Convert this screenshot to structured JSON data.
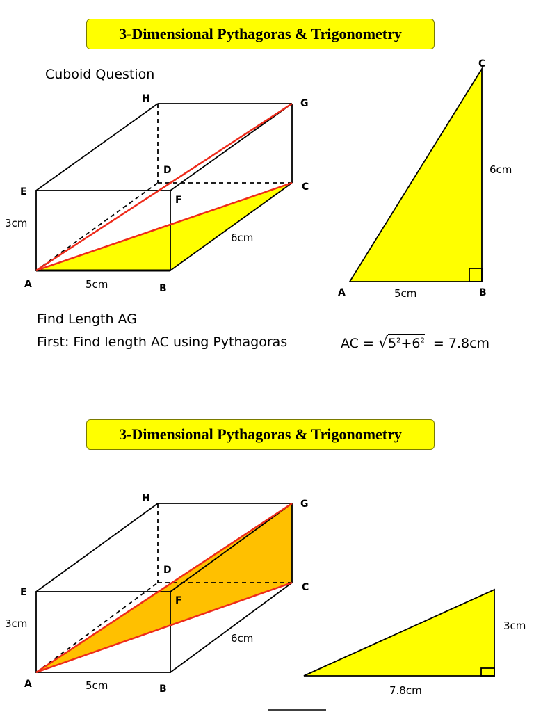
{
  "title_top": "3-Dimensional Pythagoras & Trigonometry",
  "title_bottom": "3-Dimensional Pythagoras & Trigonometry",
  "subtitle": "Cuboid Question",
  "find_text": "Find Length AG",
  "first_text": "First: Find length AC using Pythagoras",
  "formula": {
    "prefix": "AC = ",
    "root": "√",
    "base1": "5",
    "plus": "+6",
    "sup": "2",
    "suffix": "=  7.8cm"
  },
  "cuboid_top": {
    "vertices": {
      "H": "H",
      "G": "G",
      "D": "D",
      "C": "C",
      "E": "E",
      "F": "F",
      "A": "A",
      "B": "B"
    },
    "dims": {
      "height": "3cm",
      "width": "5cm",
      "depth": "6cm"
    }
  },
  "triangle_top": {
    "vertices": {
      "A": "A",
      "B": "B",
      "C": "C"
    },
    "dims": {
      "vertical": "6cm",
      "base": "5cm"
    }
  },
  "cuboid_bottom": {
    "vertices": {
      "H": "H",
      "G": "G",
      "D": "D",
      "C": "C",
      "E": "E",
      "F": "F",
      "A": "A",
      "B": "B"
    },
    "dims": {
      "height": "3cm",
      "width": "5cm",
      "depth": "6cm"
    }
  },
  "triangle_bottom": {
    "dims": {
      "vertical": "3cm",
      "base": "7.8cm"
    }
  },
  "colors": {
    "yellow": "#ffff00",
    "orange": "#ffc000",
    "red": "#ee2a1a"
  }
}
